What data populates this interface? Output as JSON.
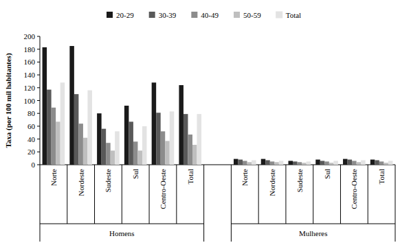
{
  "chart_data": {
    "type": "bar",
    "y_label": "Taxa (por 100 mil habitantes)",
    "group_labels": [
      "Homens",
      "Mulheres"
    ],
    "categories": [
      "Norte",
      "Nordeste",
      "Sudeste",
      "Sul",
      "Centro-Oeste",
      "Total",
      "Norte",
      "Nordeste",
      "Sudeste",
      "Sul",
      "Centro-Oeste",
      "Total"
    ],
    "series": [
      {
        "name": "20-29",
        "color": "#1a1a1a",
        "values": [
          183,
          185,
          80,
          92,
          128,
          124,
          9,
          9,
          6,
          8,
          9,
          8
        ]
      },
      {
        "name": "30-39",
        "color": "#595959",
        "values": [
          117,
          110,
          56,
          67,
          81,
          79,
          8,
          7,
          5,
          6,
          8,
          7
        ]
      },
      {
        "name": "40-49",
        "color": "#8c8c8c",
        "values": [
          89,
          64,
          34,
          36,
          52,
          47,
          6,
          5,
          4,
          5,
          6,
          5
        ]
      },
      {
        "name": "50-59",
        "color": "#bfbfbf",
        "values": [
          67,
          42,
          22,
          22,
          37,
          31,
          4,
          4,
          3,
          3,
          4,
          3
        ]
      },
      {
        "name": "Total",
        "color": "#e3e3e3",
        "values": [
          128,
          116,
          52,
          60,
          83,
          79,
          7,
          6,
          5,
          6,
          7,
          6
        ]
      }
    ],
    "ylim": [
      0,
      200
    ],
    "yticks": [
      0,
      20,
      40,
      60,
      80,
      100,
      120,
      140,
      160,
      180,
      200
    ],
    "grid": false,
    "legend": "top"
  }
}
